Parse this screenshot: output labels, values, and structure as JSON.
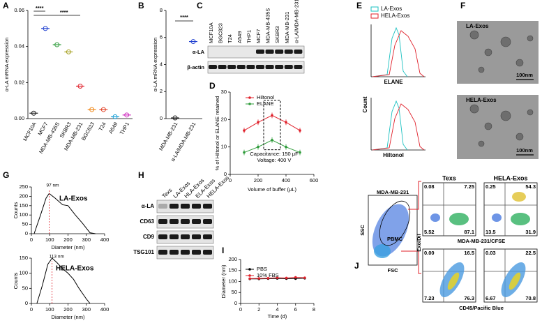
{
  "chart_data": [
    {
      "type": "dot",
      "ylabel": "α-LA mRNA expression",
      "categories": [
        "MCF10A",
        "MCF7",
        "MDA-MB-435S",
        "SKBR3",
        "MDA-MB-231",
        "BGC823",
        "T24",
        "A549",
        "THP1"
      ],
      "values": [
        0.003,
        0.05,
        0.041,
        0.037,
        0.018,
        0.005,
        0.005,
        0.001,
        0.002
      ],
      "colors": [
        "#222222",
        "#1f3fd0",
        "#2e9b3a",
        "#a6a020",
        "#e0202a",
        "#f08a1c",
        "#e2452a",
        "#18a0d8",
        "#d030c0"
      ],
      "ylim": [
        0,
        0.06
      ],
      "yticks": [
        {
          "value": 0,
          "label": "0.00"
        },
        {
          "value": 0.02,
          "label": "0.02"
        },
        {
          "value": 0.04,
          "label": "0.04"
        },
        {
          "value": 0.06,
          "label": "0.06"
        }
      ],
      "annotations": [
        "****",
        "****"
      ]
    },
    {
      "type": "dot",
      "ylabel": "α-LA mRNA expression",
      "categories": [
        "MDA-MB-231",
        "α-LA/MDA-MB-231"
      ],
      "values": [
        0.05,
        5.7
      ],
      "colors": [
        "#222222",
        "#1f3fd0"
      ],
      "ylim": [
        0,
        8
      ],
      "yticks": [
        0,
        2,
        4,
        6,
        8
      ],
      "annotations": [
        "****"
      ]
    },
    {
      "type": "line",
      "ylabel": "% of Hiltonol or ELANE retained",
      "xlabel": "Volume of buffer (μL)",
      "x": [
        100,
        200,
        300,
        400,
        500
      ],
      "series": [
        {
          "name": "Hiltonol",
          "color": "#e0202a",
          "values": [
            16,
            19,
            21.5,
            19,
            16
          ],
          "errors": [
            1,
            1,
            1,
            1,
            1
          ]
        },
        {
          "name": "ELANE",
          "color": "#2e9b3a",
          "values": [
            8,
            10,
            12.5,
            10,
            8
          ],
          "errors": [
            1,
            1,
            1,
            1,
            1
          ]
        }
      ],
      "xlim": [
        0,
        600
      ],
      "xticks": [
        0,
        200,
        400,
        600
      ],
      "ylim": [
        0,
        30
      ],
      "yticks": [
        0,
        10,
        20,
        30
      ],
      "annotations": [
        "Capacitance: 150 μF",
        "Voltage: 400 V"
      ]
    },
    {
      "type": "line",
      "title": "LA-Exos",
      "ylabel": "Counts",
      "xlabel": "Diameter (nm)",
      "x": [
        15,
        50,
        80,
        97,
        130,
        170,
        200,
        240,
        280,
        320,
        350
      ],
      "series": [
        {
          "name": "LA-Exos",
          "color": "#000000",
          "values": [
            0,
            100,
            190,
            215,
            190,
            155,
            150,
            100,
            55,
            5,
            0
          ]
        }
      ],
      "xlim": [
        0,
        400
      ],
      "xticks": [
        0,
        100,
        200,
        300,
        400
      ],
      "ylim": [
        0,
        250
      ],
      "yticks": [
        0,
        50,
        100,
        150,
        200,
        250
      ],
      "peak": 97,
      "peak_label": "97 nm"
    },
    {
      "type": "line",
      "title": "HELA-Exos",
      "ylabel": "Counts",
      "xlabel": "Diameter (nm)",
      "x": [
        30,
        60,
        90,
        113,
        140,
        170,
        200,
        230,
        260,
        300,
        320
      ],
      "series": [
        {
          "name": "HELA-Exos",
          "color": "#000000",
          "values": [
            0,
            60,
            130,
            150,
            135,
            115,
            100,
            80,
            50,
            15,
            0
          ]
        }
      ],
      "xlim": [
        0,
        400
      ],
      "xticks": [
        0,
        100,
        200,
        300,
        400
      ],
      "ylim": [
        0,
        150
      ],
      "yticks": [
        0,
        50,
        100,
        150
      ],
      "peak": 113,
      "peak_label": "113 nm"
    },
    {
      "type": "line",
      "ylabel": "Diameter (nm)",
      "xlabel": "Time (d)",
      "legend": true,
      "x": [
        1,
        2,
        3,
        4,
        5,
        6,
        7
      ],
      "series": [
        {
          "name": "PBS",
          "color": "#000000",
          "values": [
            112,
            112,
            113,
            114,
            113,
            113,
            115
          ],
          "errors": [
            5,
            5,
            5,
            5,
            5,
            5,
            5
          ]
        },
        {
          "name": "10% FBS",
          "color": "#e0202a",
          "values": [
            113,
            114,
            115,
            117,
            116,
            119,
            117
          ],
          "errors": [
            5,
            5,
            5,
            5,
            5,
            5,
            5
          ]
        }
      ],
      "xlim": [
        0,
        8
      ],
      "xticks": [
        0,
        2,
        4,
        6,
        8
      ],
      "ylim": [
        0,
        200
      ],
      "yticks": [
        0,
        50,
        100,
        150,
        200
      ]
    }
  ],
  "panel_labels": [
    "A",
    "B",
    "C",
    "D",
    "E",
    "F",
    "G",
    "H",
    "I",
    "J"
  ],
  "blot_c": {
    "lanes": [
      "MCF10A",
      "BGC823",
      "T24",
      "A549",
      "THP1",
      "MCF7",
      "MDA-MB-435S",
      "SKBR3",
      "MDA-MB-231",
      "α-LA/MDA-MB-231"
    ],
    "rows": [
      "α-LA",
      "β-actin"
    ]
  },
  "histograms_e": {
    "legend": [
      "LA-Exos",
      "HELA-Exos"
    ],
    "xlabels": [
      "ELANE",
      "Hiltonol"
    ],
    "ylabel": "Count"
  },
  "images_f": {
    "labels": [
      "LA-Exos",
      "HELA-Exos"
    ],
    "scale": "100nm"
  },
  "blot_h": {
    "lanes": [
      "Texs",
      "LA-Exos",
      "HLA-Exos",
      "ELA-Exos",
      "HELA-Exos"
    ],
    "rows": [
      "α-LA",
      "CD63",
      "CD9",
      "TSG101"
    ]
  },
  "flow_j": {
    "gates": [
      "MDA-MB-231",
      "PBMC"
    ],
    "gate_axes": [
      "SSC",
      "FSC"
    ],
    "titles": [
      "Texs",
      "HELA-Exos"
    ],
    "ylabel": "Exo/Dil",
    "xlabels": [
      "MDA-MB-231/CFSE",
      "CD45/Pacific Blue"
    ],
    "quadrants": [
      [
        "0.08",
        "7.25",
        "5.52",
        "87.1"
      ],
      [
        "0.25",
        "54.3",
        "13.5",
        "31.9"
      ],
      [
        "0.00",
        "16.5",
        "7.23",
        "76.3"
      ],
      [
        "0.03",
        "22.5",
        "6.67",
        "70.8"
      ]
    ]
  }
}
